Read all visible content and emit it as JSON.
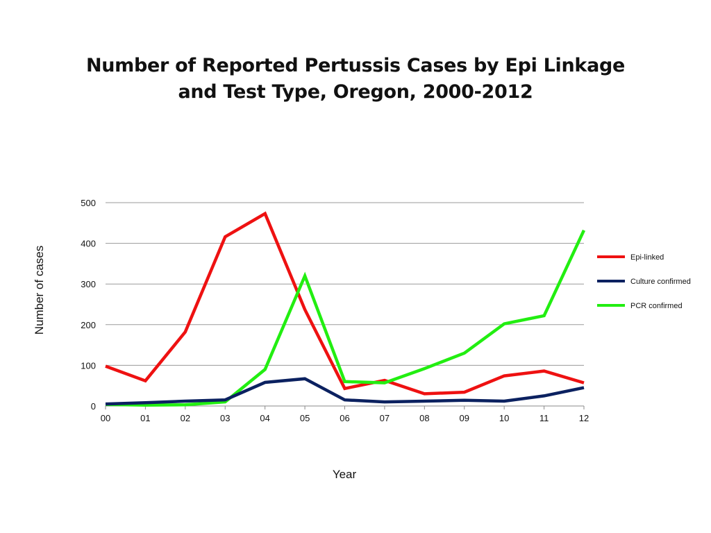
{
  "chart_data": {
    "type": "line",
    "title_lines": [
      "Number of Reported Pertussis Cases by Epi Linkage",
      "and Test Type, Oregon, 2000-2012"
    ],
    "xlabel": "Year",
    "ylabel": "Number of cases",
    "categories": [
      "00",
      "01",
      "02",
      "03",
      "04",
      "05",
      "06",
      "07",
      "08",
      "09",
      "10",
      "11",
      "12"
    ],
    "ylim": [
      0,
      500
    ],
    "yticks": [
      0,
      100,
      200,
      300,
      400,
      500
    ],
    "grid": true,
    "legend_position": "right",
    "series": [
      {
        "name": "Epi-linked",
        "color": "#ee1111",
        "values": [
          98,
          62,
          182,
          416,
          473,
          237,
          43,
          63,
          30,
          34,
          74,
          86,
          57
        ]
      },
      {
        "name": "Culture confirmed",
        "color": "#0b2160",
        "values": [
          5,
          8,
          12,
          15,
          58,
          67,
          15,
          10,
          12,
          14,
          12,
          25,
          45
        ]
      },
      {
        "name": "PCR confirmed",
        "color": "#22ee11",
        "values": [
          4,
          2,
          3,
          10,
          90,
          320,
          60,
          57,
          92,
          130,
          202,
          222,
          432
        ]
      }
    ]
  }
}
